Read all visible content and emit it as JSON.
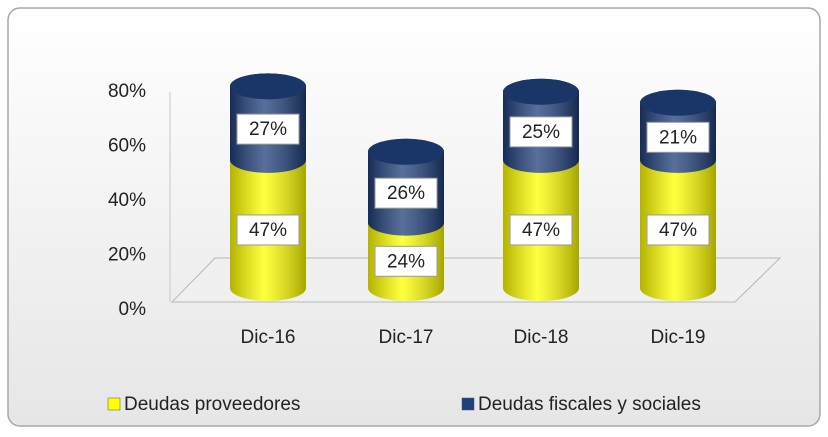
{
  "chart_data": {
    "type": "bar3d_stacked",
    "categories": [
      "Dic-16",
      "Dic-17",
      "Dic-18",
      "Dic-19"
    ],
    "series": [
      {
        "name": "Deudas proveedores",
        "color": "#ffff00",
        "values": [
          47,
          24,
          47,
          47
        ],
        "value_labels": [
          "47%",
          "24%",
          "47%",
          "47%"
        ]
      },
      {
        "name": "Deudas fiscales y sociales",
        "color": "#1f3f7a",
        "values": [
          27,
          26,
          25,
          21
        ],
        "value_labels": [
          "27%",
          "26%",
          "25%",
          "21%"
        ]
      }
    ],
    "ylim": [
      0,
      80
    ],
    "yticks": [
      {
        "value": 0,
        "label": "0%"
      },
      {
        "value": 20,
        "label": "20%"
      },
      {
        "value": 40,
        "label": "40%"
      },
      {
        "value": 60,
        "label": "60%"
      },
      {
        "value": 80,
        "label": "80%"
      }
    ],
    "legend": "bottom"
  }
}
